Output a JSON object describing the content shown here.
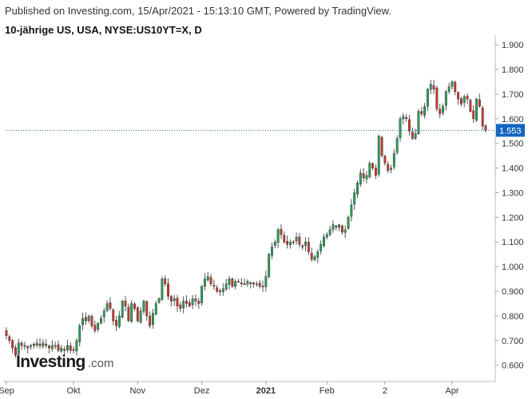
{
  "header": {
    "published": "Published on Investing.com, 15/Apr/2021 - 15:13:10 GMT, Powered by TradingView.",
    "symbol": "10-jährige US, USA, NYSE:US10YT=X, D"
  },
  "logo": {
    "main": "Investing",
    "suffix": ".com"
  },
  "colors": {
    "up": "#26a65b",
    "down": "#d9342b",
    "price_line": "#2a6b8f",
    "price_tag": "#1565c0"
  },
  "chart_data": {
    "type": "candlestick",
    "ylim": [
      0.56,
      1.92
    ],
    "y_ticks": [
      "1.900",
      "1.800",
      "1.700",
      "1.600",
      "1.500",
      "1.400",
      "1.300",
      "1.200",
      "1.100",
      "1.000",
      "0.900",
      "0.800",
      "0.700",
      "0.600"
    ],
    "x_ticks": [
      {
        "label": "Sep",
        "index": 0,
        "bold": false
      },
      {
        "label": "Okt",
        "index": 22,
        "bold": false
      },
      {
        "label": "Nov",
        "index": 43,
        "bold": false
      },
      {
        "label": "Dez",
        "index": 64,
        "bold": false
      },
      {
        "label": "2021",
        "index": 85,
        "bold": true
      },
      {
        "label": "Feb",
        "index": 105,
        "bold": false
      },
      {
        "label": "2",
        "index": 124,
        "bold": false
      },
      {
        "label": "Apr",
        "index": 146,
        "bold": false
      }
    ],
    "last_price": "1.553",
    "closes": [
      0.72,
      0.7,
      0.67,
      0.64,
      0.69,
      0.68,
      0.68,
      0.67,
      0.68,
      0.68,
      0.69,
      0.68,
      0.69,
      0.68,
      0.67,
      0.68,
      0.68,
      0.66,
      0.67,
      0.66,
      0.68,
      0.66,
      0.66,
      0.7,
      0.76,
      0.79,
      0.78,
      0.8,
      0.76,
      0.74,
      0.77,
      0.79,
      0.82,
      0.85,
      0.83,
      0.78,
      0.76,
      0.8,
      0.86,
      0.84,
      0.78,
      0.85,
      0.83,
      0.78,
      0.82,
      0.86,
      0.8,
      0.76,
      0.81,
      0.85,
      0.87,
      0.95,
      0.93,
      0.88,
      0.86,
      0.87,
      0.84,
      0.83,
      0.86,
      0.85,
      0.84,
      0.87,
      0.86,
      0.85,
      0.92,
      0.95,
      0.96,
      0.93,
      0.92,
      0.9,
      0.9,
      0.91,
      0.93,
      0.95,
      0.92,
      0.94,
      0.94,
      0.93,
      0.93,
      0.94,
      0.93,
      0.93,
      0.93,
      0.92,
      0.92,
      0.96,
      1.05,
      1.08,
      1.1,
      1.15,
      1.13,
      1.1,
      1.09,
      1.1,
      1.1,
      1.12,
      1.09,
      1.08,
      1.1,
      1.06,
      1.03,
      1.04,
      1.06,
      1.09,
      1.12,
      1.13,
      1.15,
      1.17,
      1.16,
      1.17,
      1.14,
      1.15,
      1.2,
      1.25,
      1.3,
      1.34,
      1.38,
      1.36,
      1.37,
      1.42,
      1.4,
      1.37,
      1.53,
      1.45,
      1.42,
      1.39,
      1.4,
      1.46,
      1.52,
      1.6,
      1.61,
      1.6,
      1.55,
      1.52,
      1.54,
      1.63,
      1.62,
      1.65,
      1.72,
      1.74,
      1.72,
      1.64,
      1.62,
      1.65,
      1.71,
      1.73,
      1.75,
      1.71,
      1.68,
      1.66,
      1.69,
      1.68,
      1.63,
      1.6,
      1.68,
      1.65,
      1.57,
      1.553
    ]
  }
}
